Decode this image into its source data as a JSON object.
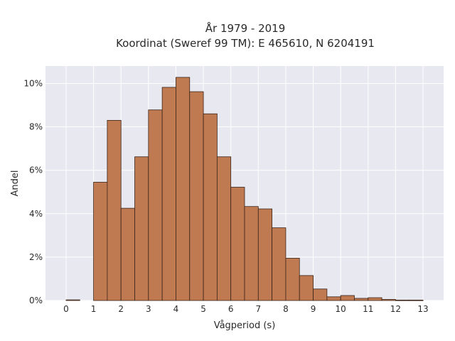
{
  "chart_data": {
    "type": "bar",
    "title_line1": "År 1979 - 2019",
    "title_line2": "Koordinat (Sweref 99 TM): E 465610, N 6204191",
    "xlabel": "Vågperiod (s)",
    "ylabel": "Andel",
    "xlim": [
      -0.75,
      13.75
    ],
    "ylim": [
      0,
      0.108
    ],
    "bin_width": 0.5,
    "bin_starts": [
      0,
      0.5,
      1,
      1.5,
      2,
      2.5,
      3,
      3.5,
      4,
      4.5,
      5,
      5.5,
      6,
      6.5,
      7,
      7.5,
      8,
      8.5,
      9,
      9.5,
      10,
      10.5,
      11,
      11.5,
      12,
      12.5
    ],
    "values": [
      0.0003,
      0,
      0.0545,
      0.083,
      0.0425,
      0.0662,
      0.0878,
      0.0982,
      0.1028,
      0.0962,
      0.086,
      0.0662,
      0.0522,
      0.0433,
      0.0422,
      0.0335,
      0.0195,
      0.0115,
      0.0053,
      0.0017,
      0.0023,
      0.001,
      0.0013,
      0.0005,
      0.0002,
      0.0002
    ],
    "x_ticks": [
      0,
      1,
      2,
      3,
      4,
      5,
      6,
      7,
      8,
      9,
      10,
      11,
      12,
      13
    ],
    "y_ticks": [
      0,
      0.02,
      0.04,
      0.06,
      0.08,
      0.1
    ],
    "y_tick_labels": [
      "0%",
      "2%",
      "4%",
      "6%",
      "8%",
      "10%"
    ],
    "grid": true,
    "colors": {
      "bar_fill": "#c07a52",
      "bar_stroke": "#3a2418",
      "plot_background": "#e8e8f0",
      "grid": "#ffffff"
    }
  }
}
